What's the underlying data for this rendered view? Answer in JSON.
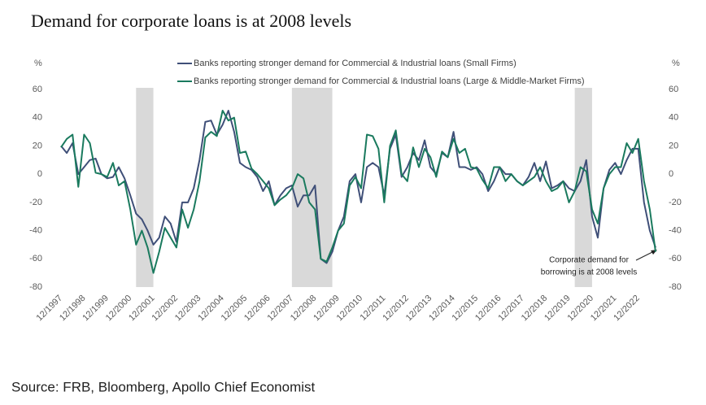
{
  "chart_data": {
    "type": "line",
    "title": "Demand for corporate loans is at 2008 levels",
    "y_unit_left": "%",
    "y_unit_right": "%",
    "source": "Source: FRB, Bloomberg, Apollo Chief Economist",
    "annotation": [
      "Corporate demand for",
      "borrowing is at 2008 levels"
    ],
    "categories": [
      "12/1997",
      null,
      null,
      null,
      "12/1998",
      null,
      null,
      null,
      "12/1999",
      null,
      null,
      null,
      "12/2000",
      null,
      null,
      null,
      "12/2001",
      null,
      null,
      null,
      "12/2002",
      null,
      null,
      null,
      "12/2003",
      null,
      null,
      null,
      "12/2004",
      null,
      null,
      null,
      "12/2005",
      null,
      null,
      null,
      "12/2006",
      null,
      null,
      null,
      "12/2007",
      null,
      null,
      null,
      "12/2008",
      null,
      null,
      null,
      "12/2009",
      null,
      null,
      null,
      "12/2010",
      null,
      null,
      null,
      "12/2011",
      null,
      null,
      null,
      "12/2012",
      null,
      null,
      null,
      "12/2013",
      null,
      null,
      null,
      "12/2014",
      null,
      null,
      null,
      "12/2015",
      null,
      null,
      null,
      "12/2016",
      null,
      null,
      null,
      "12/2017",
      null,
      null,
      null,
      "12/2018",
      null,
      null,
      null,
      "12/2019",
      null,
      null,
      null,
      "12/2020",
      null,
      null,
      null,
      "12/2021",
      null,
      null,
      null,
      "12/2022",
      null,
      null,
      null
    ],
    "series": [
      {
        "name": "Banks reporting stronger demand for Commercial & Industrial loans (Small Firms)",
        "color": "#3f4f78",
        "values": [
          20,
          15,
          22,
          0,
          5,
          10,
          11,
          0,
          -3,
          -2,
          5,
          -3,
          -15,
          -28,
          -32,
          -40,
          -50,
          -45,
          -30,
          -35,
          -48,
          -20,
          -20,
          -10,
          10,
          37,
          38,
          28,
          35,
          45,
          30,
          8,
          5,
          3,
          -2,
          -12,
          -5,
          -22,
          -15,
          -10,
          -8,
          -23,
          -15,
          -15,
          -8,
          -60,
          -63,
          -55,
          -40,
          -30,
          -5,
          0,
          -20,
          5,
          8,
          5,
          -15,
          18,
          28,
          -2,
          5,
          15,
          10,
          24,
          5,
          0,
          15,
          12,
          30,
          5,
          5,
          3,
          5,
          0,
          -12,
          -5,
          5,
          0,
          0,
          -5,
          -8,
          -2,
          8,
          -5,
          9,
          -10,
          -8,
          -5,
          -10,
          -12,
          -5,
          10,
          -30,
          -45,
          -10,
          3,
          8,
          0,
          10,
          18,
          18,
          -20,
          -40,
          -52
        ]
      },
      {
        "name": "Banks reporting stronger demand for Commercial & Industrial loans (Large & Middle-Market Firms)",
        "color": "#1a7a5e",
        "values": [
          19,
          25,
          28,
          -9,
          28,
          22,
          1,
          0,
          -2,
          8,
          -8,
          -5,
          -25,
          -50,
          -40,
          -52,
          -70,
          -55,
          -38,
          -45,
          -52,
          -25,
          -38,
          -25,
          -5,
          26,
          30,
          27,
          45,
          38,
          40,
          15,
          16,
          4,
          0,
          -5,
          -10,
          -22,
          -18,
          -15,
          -10,
          0,
          -3,
          -20,
          -25,
          -60,
          -62,
          -52,
          -40,
          -35,
          -8,
          -2,
          -10,
          28,
          27,
          18,
          -20,
          20,
          31,
          0,
          -5,
          19,
          5,
          18,
          12,
          -2,
          16,
          12,
          25,
          15,
          18,
          5,
          4,
          -4,
          -10,
          5,
          5,
          -5,
          0,
          -5,
          -8,
          -5,
          -2,
          5,
          -5,
          -12,
          -10,
          -5,
          -20,
          -12,
          5,
          2,
          -25,
          -35,
          -10,
          0,
          5,
          5,
          22,
          15,
          25,
          -5,
          -25,
          -55
        ]
      }
    ],
    "shading": [
      [
        13,
        16
      ],
      [
        40,
        47
      ],
      [
        89,
        92
      ]
    ],
    "ylim": [
      -80,
      60
    ],
    "yticks": [
      -80,
      -60,
      -40,
      -20,
      0,
      20,
      40,
      60
    ],
    "grid": false
  }
}
